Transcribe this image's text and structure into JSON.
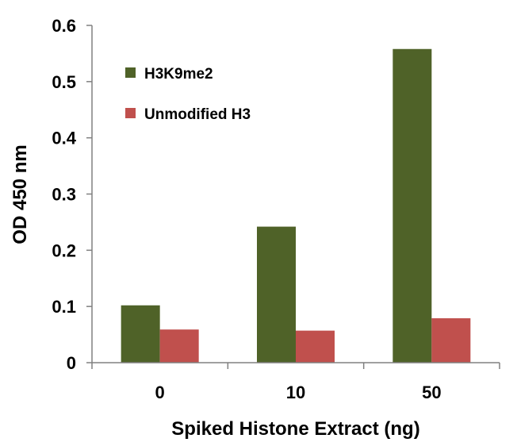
{
  "chart_data": {
    "type": "bar",
    "title": "",
    "xlabel": "Spiked Histone Extract (ng)",
    "ylabel": "OD 450 nm",
    "categories": [
      "0",
      "10",
      "50"
    ],
    "series": [
      {
        "name": "H3K9me2",
        "color": "#4f6228",
        "values": [
          0.102,
          0.242,
          0.558
        ]
      },
      {
        "name": "Unmodified H3",
        "color": "#c0504d",
        "values": [
          0.059,
          0.057,
          0.079
        ]
      }
    ],
    "ylim": [
      0,
      0.6
    ],
    "yticks": [
      "0",
      "0.1",
      "0.2",
      "0.3",
      "0.4",
      "0.5",
      "0.6"
    ],
    "grid": false,
    "legend": "top-left"
  }
}
